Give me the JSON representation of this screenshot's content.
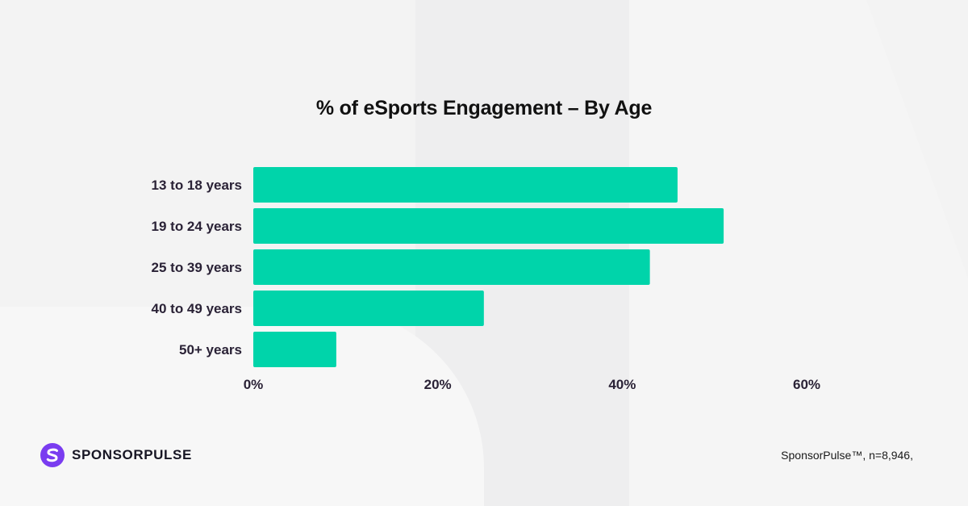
{
  "chart_data": {
    "type": "bar",
    "orientation": "horizontal",
    "title": "% of eSports Engagement – By Age",
    "categories": [
      "13 to 18 years",
      "19 to 24 years",
      "25 to 39 years",
      "40 to 49 years",
      "50+ years"
    ],
    "values": [
      46,
      51,
      43,
      25,
      9
    ],
    "xlim": [
      0,
      60
    ],
    "xticks": [
      0,
      20,
      40,
      60
    ],
    "xtick_labels": [
      "0%",
      "20%",
      "40%",
      "60%"
    ],
    "xlabel": "",
    "ylabel": "",
    "grid": false,
    "bar_color": "#00d4aa"
  },
  "brand": {
    "logo_text": "SPONSORPULSE",
    "logo_color": "#7a3cf0"
  },
  "footer": {
    "source": "SponsorPulse™, n=8,946,"
  }
}
